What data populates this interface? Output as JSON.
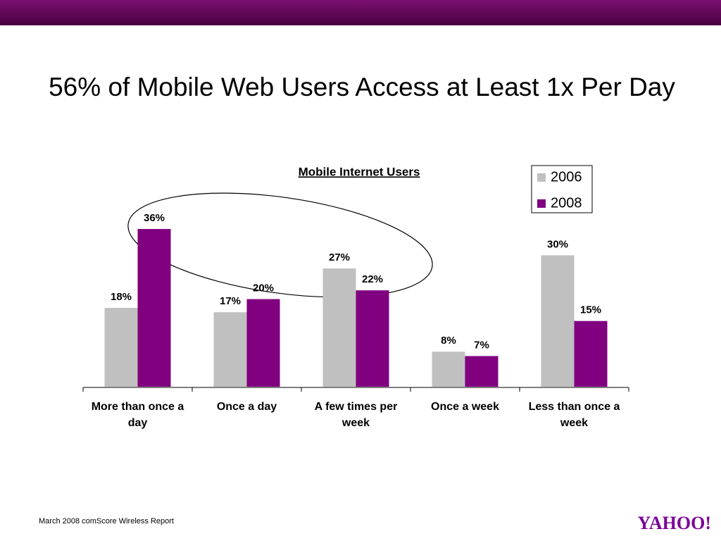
{
  "slide_title": "56% of Mobile Web Users Access at Least 1x Per Day",
  "footer": "March 2008 comScore Wireless Report",
  "logo": "YAHOO!",
  "chart_data": {
    "type": "bar",
    "title": "Mobile Internet Users",
    "categories": [
      "More than once a day",
      "Once a day",
      "A few times per week",
      "Once a week",
      "Less than once a week"
    ],
    "series": [
      {
        "name": "2006",
        "color": "#c0c0c0",
        "values": [
          18,
          17,
          27,
          8,
          30
        ],
        "value_labels": [
          "18%",
          "17%",
          "27%",
          "8%",
          "30%"
        ]
      },
      {
        "name": "2008",
        "color": "#800080",
        "values": [
          36,
          20,
          22,
          7,
          15
        ],
        "value_labels": [
          "36%",
          "20%",
          "22%",
          "7%",
          "15%"
        ]
      }
    ],
    "legend": "top-right"
  }
}
